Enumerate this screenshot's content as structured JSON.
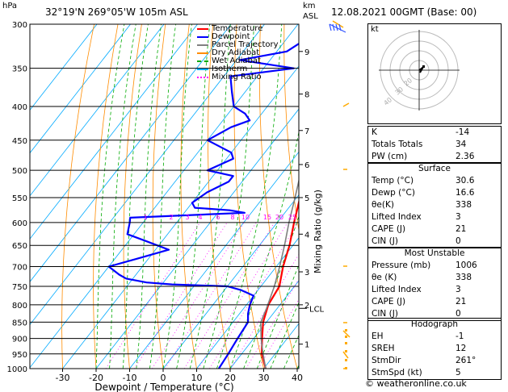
{
  "header": {
    "location": "32°19'N  269°05'W  105m  ASL",
    "datetime": "12.08.2021  00GMT  (Base: 00)",
    "pressure_unit": "hPa",
    "km_label": "km",
    "asl_label": "ASL"
  },
  "legend": [
    "Temperature",
    "Dewpoint",
    "Parcel Trajectory",
    "Dry Adiabat",
    "Wet Adiabat",
    "Isotherm",
    "Mixing Ratio"
  ],
  "colors": {
    "temperature": "#ff0000",
    "dewpoint": "#0000ff",
    "parcel": "#808080",
    "dry_adiabat": "#ff8c00",
    "wet_adiabat": "#00aa00",
    "isotherm": "#00aaff",
    "mixing_ratio": "#ff00ff",
    "wind_barb": "#ffaa00"
  },
  "chart_data": {
    "type": "line",
    "xlabel": "Dewpoint / Temperature (°C)",
    "ylabel_right": "Mixing Ratio (g/kg)",
    "pressure_levels": [
      300,
      350,
      400,
      450,
      500,
      550,
      600,
      650,
      700,
      750,
      800,
      850,
      900,
      950,
      1000
    ],
    "x_ticks": [
      -30,
      -20,
      -10,
      0,
      10,
      20,
      30,
      40
    ],
    "km_ticks": [
      {
        "km": "1",
        "p": 918
      },
      {
        "km": "2",
        "p": 800
      },
      {
        "km": "3",
        "p": 713
      },
      {
        "km": "4",
        "p": 625
      },
      {
        "km": "5",
        "p": 550
      },
      {
        "km": "6",
        "p": 490
      },
      {
        "km": "7",
        "p": 435
      },
      {
        "km": "8",
        "p": 383
      },
      {
        "km": "9",
        "p": 330
      }
    ],
    "lcl_label": "LCL",
    "lcl_p": 810,
    "mixing_ratio_labels": [
      "1",
      "2",
      "3",
      "4",
      "6",
      "8",
      "10",
      "15",
      "20",
      "25"
    ],
    "series": [
      {
        "name": "Temperature",
        "points": [
          [
            1000,
            30.6
          ],
          [
            950,
            26
          ],
          [
            900,
            22.5
          ],
          [
            850,
            19
          ],
          [
            800,
            16.5
          ],
          [
            750,
            15.5
          ],
          [
            700,
            12
          ],
          [
            650,
            9
          ],
          [
            600,
            5
          ],
          [
            550,
            1
          ],
          [
            500,
            -4
          ],
          [
            450,
            -10
          ],
          [
            400,
            -17
          ],
          [
            350,
            -25
          ],
          [
            300,
            -34
          ]
        ]
      },
      {
        "name": "Dewpoint",
        "points": [
          [
            1000,
            16.6
          ],
          [
            950,
            16
          ],
          [
            900,
            15.2
          ],
          [
            850,
            14.5
          ],
          [
            825,
            12.5
          ],
          [
            800,
            11
          ],
          [
            775,
            10
          ],
          [
            760,
            5
          ],
          [
            750,
            0
          ],
          [
            745,
            -17
          ],
          [
            740,
            -25
          ],
          [
            730,
            -32
          ],
          [
            720,
            -35
          ],
          [
            700,
            -40
          ],
          [
            680,
            -33
          ],
          [
            660,
            -26
          ],
          [
            640,
            -35
          ],
          [
            625,
            -42
          ],
          [
            600,
            -44
          ],
          [
            590,
            -45
          ],
          [
            580,
            -12
          ],
          [
            575,
            -17
          ],
          [
            570,
            -28
          ],
          [
            560,
            -30
          ],
          [
            540,
            -28
          ],
          [
            520,
            -24
          ],
          [
            510,
            -24
          ],
          [
            500,
            -33
          ],
          [
            480,
            -28
          ],
          [
            470,
            -30
          ],
          [
            450,
            -40
          ],
          [
            430,
            -36
          ],
          [
            420,
            -32
          ],
          [
            410,
            -35
          ],
          [
            400,
            -40
          ],
          [
            380,
            -44
          ],
          [
            360,
            -48
          ],
          [
            350,
            -31
          ],
          [
            340,
            -49
          ],
          [
            330,
            -37
          ],
          [
            320,
            -35
          ],
          [
            310,
            -32
          ],
          [
            300,
            -26
          ]
        ]
      },
      {
        "name": "Parcel Trajectory",
        "points": [
          [
            1000,
            30.6
          ],
          [
            950,
            26.4
          ],
          [
            900,
            22.2
          ],
          [
            850,
            18.3
          ],
          [
            810,
            16.8
          ],
          [
            750,
            14
          ],
          [
            700,
            11
          ],
          [
            650,
            7.5
          ],
          [
            600,
            3.5
          ],
          [
            550,
            -0.5
          ],
          [
            500,
            -5
          ],
          [
            450,
            -10.5
          ],
          [
            400,
            -16.5
          ],
          [
            350,
            -24
          ],
          [
            300,
            -33
          ]
        ]
      }
    ]
  },
  "hodograph": {
    "label": "kt",
    "ring_labels": [
      "40",
      "30",
      "20"
    ]
  },
  "indices": [
    {
      "label": "K",
      "value": "-14"
    },
    {
      "label": "Totals Totals",
      "value": "34"
    },
    {
      "label": "PW (cm)",
      "value": "2.36"
    }
  ],
  "surface": {
    "title": "Surface",
    "rows": [
      {
        "label": "Temp (°C)",
        "value": "30.6"
      },
      {
        "label": "Dewp (°C)",
        "value": "16.6"
      },
      {
        "label": "θe(K)",
        "value": "338"
      },
      {
        "label": "Lifted Index",
        "value": "3"
      },
      {
        "label": "CAPE (J)",
        "value": "21"
      },
      {
        "label": "CIN (J)",
        "value": "0"
      }
    ]
  },
  "most_unstable": {
    "title": "Most Unstable",
    "rows": [
      {
        "label": "Pressure (mb)",
        "value": "1006"
      },
      {
        "label": "θe (K)",
        "value": "338"
      },
      {
        "label": "Lifted Index",
        "value": "3"
      },
      {
        "label": "CAPE (J)",
        "value": "21"
      },
      {
        "label": "CIN (J)",
        "value": "0"
      }
    ]
  },
  "hodograph_table": {
    "title": "Hodograph",
    "rows": [
      {
        "label": "EH",
        "value": "-1"
      },
      {
        "label": "SREH",
        "value": "12"
      },
      {
        "label": "StmDir",
        "value": "261°"
      },
      {
        "label": "StmSpd (kt)",
        "value": "5"
      }
    ]
  },
  "footer": "© weatheronline.co.uk"
}
